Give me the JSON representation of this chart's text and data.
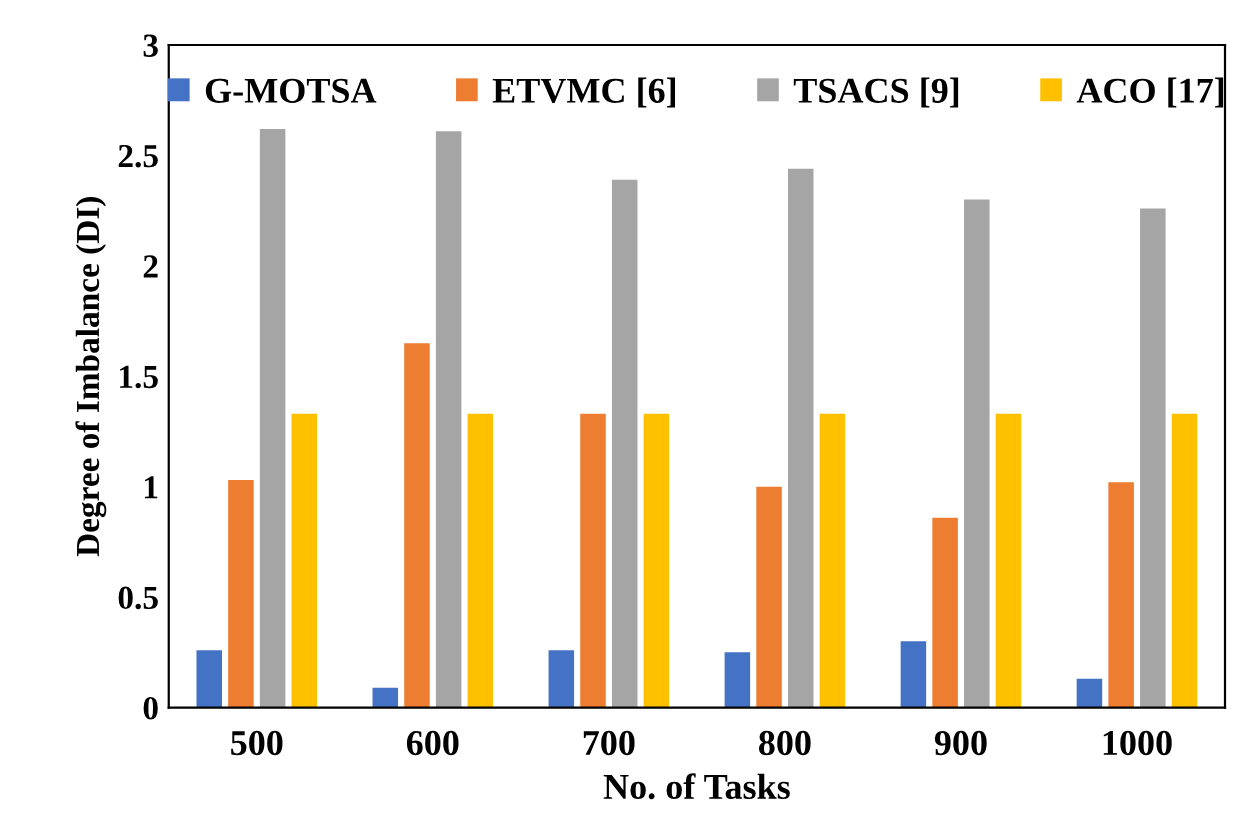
{
  "chart_data": {
    "type": "bar",
    "xlabel": "No. of Tasks",
    "ylabel": "Degree of Imbalance (DI)",
    "categories": [
      "500",
      "600",
      "700",
      "800",
      "900",
      "1000"
    ],
    "series": [
      {
        "name": "G-MOTSA",
        "color": "#4472c4",
        "values": [
          0.26,
          0.09,
          0.26,
          0.25,
          0.3,
          0.13
        ]
      },
      {
        "name": "ETVMC [6]",
        "color": "#ed7d31",
        "values": [
          1.03,
          1.65,
          1.33,
          1.0,
          0.86,
          1.02
        ]
      },
      {
        "name": "TSACS [9]",
        "color": "#a5a5a5",
        "values": [
          2.62,
          2.61,
          2.39,
          2.44,
          2.3,
          2.26
        ]
      },
      {
        "name": "ACO [17]",
        "color": "#ffc000",
        "values": [
          1.33,
          1.33,
          1.33,
          1.33,
          1.33,
          1.33
        ]
      }
    ],
    "ylim": [
      0,
      3
    ],
    "yticks": [
      0,
      0.5,
      1,
      1.5,
      2,
      2.5,
      3
    ],
    "grid": false,
    "legend": "top"
  }
}
